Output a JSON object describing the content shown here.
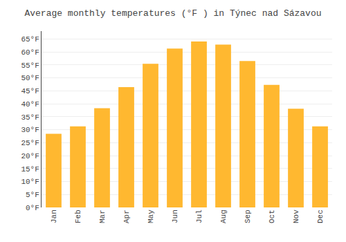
{
  "chart_data": {
    "type": "bar",
    "title": "Average monthly temperatures (°F ) in Týnec nad Sázavou",
    "categories": [
      "Jan",
      "Feb",
      "Mar",
      "Apr",
      "May",
      "Jun",
      "Jul",
      "Aug",
      "Sep",
      "Oct",
      "Nov",
      "Dec"
    ],
    "values": [
      28.4,
      31.3,
      38.3,
      46.4,
      55.4,
      61.3,
      64.0,
      62.8,
      56.5,
      47.3,
      38.1,
      31.3
    ],
    "color": "#FFB830",
    "ylim": [
      0,
      68
    ],
    "yticks": [
      {
        "value": 0,
        "label": "0°F"
      },
      {
        "value": 5,
        "label": "5°F"
      },
      {
        "value": 10,
        "label": "10°F"
      },
      {
        "value": 15,
        "label": "15°F"
      },
      {
        "value": 20,
        "label": "20°F"
      },
      {
        "value": 25,
        "label": "25°F"
      },
      {
        "value": 30,
        "label": "30°F"
      },
      {
        "value": 35,
        "label": "35°F"
      },
      {
        "value": 40,
        "label": "40°F"
      },
      {
        "value": 45,
        "label": "45°F"
      },
      {
        "value": 50,
        "label": "50°F"
      },
      {
        "value": 55,
        "label": "55°F"
      },
      {
        "value": 60,
        "label": "60°F"
      },
      {
        "value": 65,
        "label": "65°F"
      }
    ],
    "grid": true
  }
}
